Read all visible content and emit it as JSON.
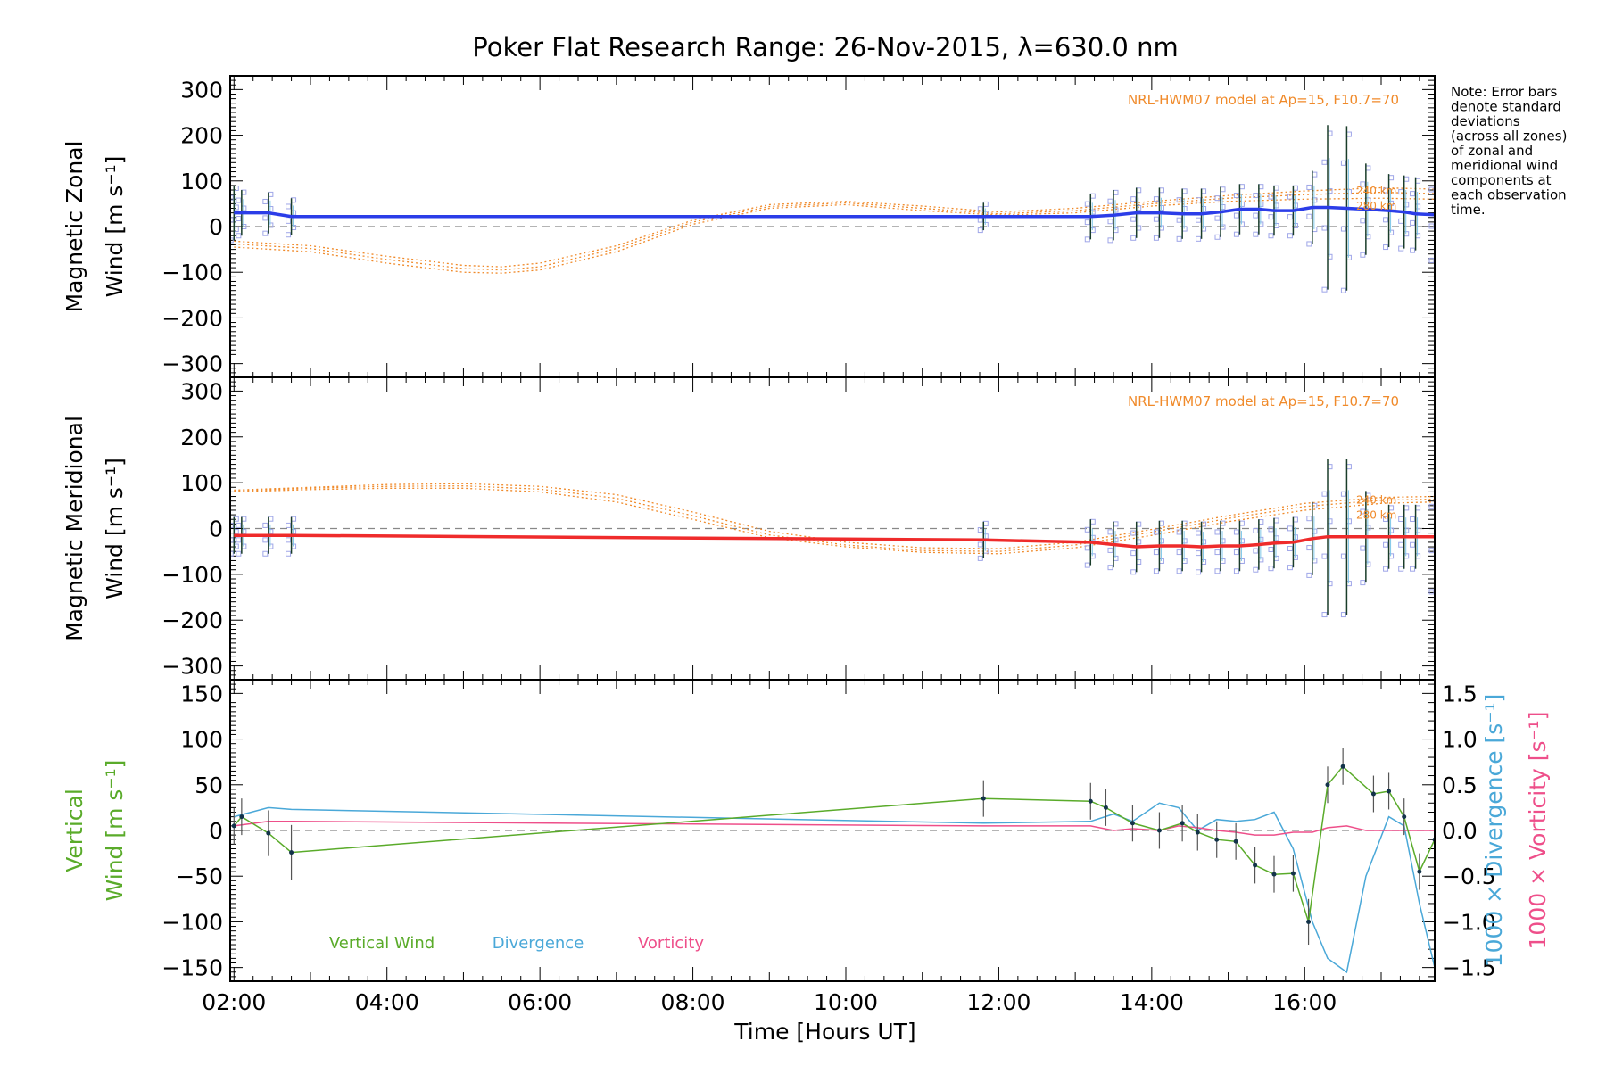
{
  "chart_data": {
    "type": "line",
    "title": "Poker Flat Research Range: 26-Nov-2015, λ=630.0 nm",
    "xlabel": "Time [Hours UT]",
    "x_ticks": [
      "02:00",
      "04:00",
      "06:00",
      "08:00",
      "10:00",
      "12:00",
      "14:00",
      "16:00"
    ],
    "xlim": [
      1.95,
      17.7
    ],
    "note": [
      "Note: Error bars",
      "denote standard",
      "deviations",
      "(across all zones)",
      "of zonal and",
      "meridional wind",
      "components at",
      "each observation",
      "time."
    ],
    "colors": {
      "zonal": "#2b3de8",
      "meridional": "#ef2b2b",
      "model": "#f08a2a",
      "vertical": "#5aab2a",
      "divergence": "#4aa8d8",
      "vorticity": "#ee4f8a",
      "zone_points": "#9fa6e8",
      "axis": "#000000",
      "zero": "#888888"
    },
    "panels": [
      {
        "id": "zonal",
        "ylabel_line1": "Magnetic Zonal",
        "ylabel_line2": "Wind [m s⁻¹]",
        "ylim": [
          -330,
          330
        ],
        "y_ticks": [
          -300,
          -200,
          -100,
          0,
          100,
          200,
          300
        ],
        "model_label": "NRL-HWM07 model at Ap=15, F10.7=70",
        "model_altitudes": [
          "240 km",
          "280 km"
        ],
        "series": {
          "x": [
            2.0,
            2.1,
            2.45,
            2.75,
            11.8,
            13.2,
            13.5,
            13.8,
            14.1,
            14.4,
            14.65,
            14.9,
            15.15,
            15.4,
            15.6,
            15.85,
            16.1,
            16.3,
            16.55,
            16.8,
            17.1,
            17.3,
            17.45,
            17.7
          ],
          "y": [
            30,
            30,
            30,
            22,
            22,
            22,
            25,
            30,
            30,
            28,
            28,
            32,
            38,
            38,
            35,
            35,
            42,
            42,
            40,
            38,
            35,
            32,
            28,
            26
          ]
        },
        "errors": [
          60,
          50,
          45,
          40,
          30,
          50,
          55,
          55,
          55,
          55,
          55,
          55,
          55,
          55,
          55,
          55,
          80,
          180,
          180,
          100,
          80,
          80,
          80,
          100
        ],
        "model_curves": [
          {
            "x": [
              2.0,
              3.0,
              4.0,
              5.0,
              5.5,
              6.0,
              7.0,
              8.0,
              9.0,
              10.0,
              11.0,
              12.0,
              13.0,
              14.0,
              15.0,
              16.0,
              17.0,
              17.7
            ],
            "y": [
              -45,
              -55,
              -80,
              -100,
              -102,
              -95,
              -55,
              5,
              40,
              48,
              35,
              25,
              30,
              45,
              55,
              60,
              62,
              60
            ]
          },
          {
            "x": [
              2.0,
              3.0,
              4.0,
              5.0,
              5.5,
              6.0,
              7.0,
              8.0,
              9.0,
              10.0,
              11.0,
              12.0,
              13.0,
              14.0,
              15.0,
              16.0,
              17.0,
              17.7
            ],
            "y": [
              -38,
              -48,
              -72,
              -92,
              -95,
              -88,
              -48,
              10,
              44,
              52,
              40,
              28,
              35,
              50,
              62,
              70,
              75,
              72
            ]
          },
          {
            "x": [
              2.0,
              3.0,
              4.0,
              5.0,
              5.5,
              6.0,
              7.0,
              8.0,
              9.0,
              10.0,
              11.0,
              12.0,
              13.0,
              14.0,
              15.0,
              16.0,
              17.0,
              17.7
            ],
            "y": [
              -32,
              -42,
              -65,
              -85,
              -88,
              -80,
              -42,
              14,
              48,
              55,
              45,
              32,
              40,
              55,
              68,
              78,
              85,
              82
            ]
          }
        ]
      },
      {
        "id": "meridional",
        "ylabel_line1": "Magnetic Meridional",
        "ylabel_line2": "Wind [m s⁻¹]",
        "ylim": [
          -330,
          330
        ],
        "y_ticks": [
          -300,
          -200,
          -100,
          0,
          100,
          200,
          300
        ],
        "model_label": "NRL-HWM07 model at Ap=15, F10.7=70",
        "model_altitudes": [
          "240 km",
          "280 km"
        ],
        "series": {
          "x": [
            2.0,
            2.1,
            2.45,
            2.75,
            11.8,
            13.2,
            13.5,
            13.8,
            14.1,
            14.4,
            14.65,
            14.9,
            15.15,
            15.4,
            15.6,
            15.85,
            16.1,
            16.3,
            16.55,
            16.8,
            17.1,
            17.3,
            17.45,
            17.7
          ],
          "y": [
            -15,
            -15,
            -15,
            -15,
            -25,
            -30,
            -35,
            -40,
            -38,
            -38,
            -40,
            -38,
            -38,
            -35,
            -32,
            -30,
            -22,
            -18,
            -18,
            -18,
            -18,
            -18,
            -18,
            -18
          ]
        },
        "errors": [
          40,
          40,
          40,
          40,
          40,
          50,
          50,
          55,
          55,
          55,
          55,
          55,
          55,
          55,
          55,
          55,
          80,
          170,
          170,
          100,
          70,
          70,
          70,
          120
        ],
        "model_curves": [
          {
            "x": [
              2.0,
              3.0,
              4.0,
              5.0,
              6.0,
              7.0,
              8.0,
              9.0,
              10.0,
              11.0,
              12.0,
              13.0,
              14.0,
              15.0,
              16.0,
              17.0,
              17.7
            ],
            "y": [
              80,
              85,
              88,
              88,
              80,
              58,
              20,
              -20,
              -40,
              -52,
              -55,
              -42,
              -15,
              15,
              40,
              55,
              58
            ]
          },
          {
            "x": [
              2.0,
              3.0,
              4.0,
              5.0,
              6.0,
              7.0,
              8.0,
              9.0,
              10.0,
              11.0,
              12.0,
              13.0,
              14.0,
              15.0,
              16.0,
              17.0,
              17.7
            ],
            "y": [
              82,
              88,
              92,
              93,
              86,
              66,
              28,
              -14,
              -36,
              -48,
              -50,
              -36,
              -8,
              22,
              48,
              62,
              64
            ]
          },
          {
            "x": [
              2.0,
              3.0,
              4.0,
              5.0,
              6.0,
              7.0,
              8.0,
              9.0,
              10.0,
              11.0,
              12.0,
              13.0,
              14.0,
              15.0,
              16.0,
              17.0,
              17.7
            ],
            "y": [
              84,
              90,
              96,
              98,
              92,
              74,
              36,
              -6,
              -30,
              -42,
              -44,
              -30,
              -2,
              28,
              55,
              68,
              70
            ]
          }
        ]
      },
      {
        "id": "vertical",
        "ylabel_line1": "Vertical",
        "ylabel_line2": "Wind [m s⁻¹]",
        "ylim": [
          -165,
          165
        ],
        "y_ticks": [
          -150,
          -100,
          -50,
          0,
          50,
          100,
          150
        ],
        "right_ylim": [
          -1.65,
          1.65
        ],
        "right_ticks": [
          -1.5,
          -1.0,
          -0.5,
          0.0,
          0.5,
          1.0,
          1.5
        ],
        "right_label_divergence": "1000 × Divergence [s⁻¹]",
        "right_label_vorticity": "1000 × Vorticity [s⁻¹]",
        "legend": [
          "Vertical Wind",
          "Divergence",
          "Vorticity"
        ],
        "vertical_wind": {
          "x": [
            2.0,
            2.1,
            2.45,
            2.75,
            11.8,
            13.2,
            13.4,
            13.75,
            14.1,
            14.4,
            14.6,
            14.85,
            15.1,
            15.35,
            15.6,
            15.85,
            16.05,
            16.3,
            16.5,
            16.9,
            17.1,
            17.3,
            17.5,
            17.7
          ],
          "y": [
            5,
            15,
            -3,
            -24,
            35,
            32,
            25,
            8,
            0,
            8,
            -2,
            -10,
            -12,
            -38,
            -48,
            -47,
            -100,
            50,
            70,
            40,
            43,
            15,
            -45,
            -10
          ]
        },
        "vertical_err": [
          20,
          20,
          25,
          30,
          20,
          20,
          20,
          20,
          20,
          20,
          20,
          20,
          20,
          20,
          20,
          20,
          25,
          20,
          20,
          20,
          20,
          20,
          20,
          20
        ],
        "divergence": {
          "x": [
            2.0,
            2.45,
            2.75,
            11.8,
            13.2,
            13.5,
            13.75,
            14.1,
            14.35,
            14.6,
            14.85,
            15.1,
            15.35,
            15.6,
            15.85,
            16.1,
            16.3,
            16.55,
            16.8,
            17.1,
            17.3,
            17.5,
            17.7
          ],
          "y": [
            0.15,
            0.25,
            0.23,
            0.08,
            0.1,
            0.18,
            0.1,
            0.3,
            0.25,
            0.0,
            0.12,
            0.1,
            0.12,
            0.2,
            -0.2,
            -1.0,
            -1.4,
            -1.55,
            -0.5,
            0.15,
            0.05,
            -0.8,
            -1.5
          ]
        },
        "vorticity": {
          "x": [
            2.0,
            2.45,
            2.75,
            11.8,
            13.2,
            13.5,
            13.75,
            14.1,
            14.35,
            14.6,
            14.85,
            15.1,
            15.35,
            15.6,
            15.85,
            16.1,
            16.3,
            16.55,
            16.8,
            17.1,
            17.3,
            17.5,
            17.7
          ],
          "y": [
            0.05,
            0.1,
            0.1,
            0.05,
            0.05,
            0.0,
            0.02,
            0.0,
            0.05,
            0.03,
            0.0,
            -0.02,
            -0.05,
            -0.05,
            -0.02,
            -0.02,
            0.03,
            0.05,
            0.0,
            0.0,
            0.0,
            0.0,
            0.0
          ]
        }
      }
    ]
  }
}
